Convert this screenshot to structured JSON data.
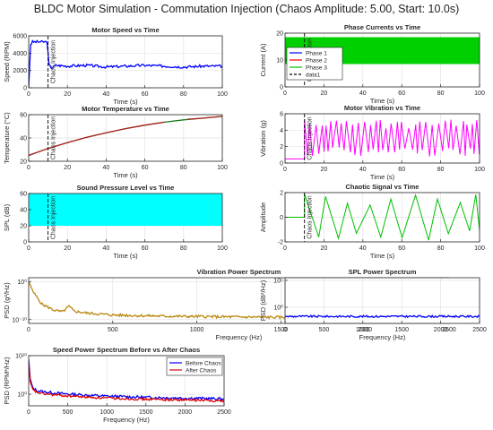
{
  "figure": {
    "suptitle": "BLDC Motor Simulation - Commutation Injection (Chaos Amplitude: 5.00, Start: 10.0s)"
  },
  "chart_data": [
    {
      "id": "speed",
      "type": "line",
      "title": "Motor Speed vs Time",
      "xlabel": "Time (s)",
      "ylabel": "Speed (RPM)",
      "xlim": [
        0,
        100
      ],
      "ylim": [
        0,
        6000
      ],
      "xticks": [
        0,
        20,
        40,
        60,
        80,
        100
      ],
      "yticks": [
        0,
        2000,
        4000,
        6000
      ],
      "grid": true,
      "series": [
        {
          "color": "#0000ff",
          "noise": 150,
          "seed": 3,
          "points": [
            [
              0,
              0
            ],
            [
              1,
              5000
            ],
            [
              2,
              5300
            ],
            [
              9.5,
              5300
            ],
            [
              10.5,
              2600
            ],
            [
              12,
              2300
            ],
            [
              14,
              2600
            ],
            [
              20,
              2500
            ],
            [
              30,
              2600
            ],
            [
              40,
              2400
            ],
            [
              50,
              2500
            ],
            [
              60,
              2600
            ],
            [
              70,
              2500
            ],
            [
              80,
              2400
            ],
            [
              90,
              2500
            ],
            [
              100,
              2500
            ]
          ]
        }
      ],
      "annotation": {
        "x": 10,
        "label": "Chaos Injection"
      }
    },
    {
      "id": "currents",
      "type": "line",
      "title": "Phase Currents vs Time",
      "xlabel": "Time (s)",
      "ylabel": "Current (A)",
      "xlim": [
        0,
        100
      ],
      "ylim": [
        0,
        20
      ],
      "xticks": [
        0,
        20,
        40,
        60,
        80,
        100
      ],
      "yticks": [
        0,
        10,
        20
      ],
      "grid": true,
      "fill_band": {
        "color": "#00d000",
        "from": 8.5,
        "to": 18.5
      },
      "series": [],
      "annotation": {
        "x": 10,
        "label": "Chaos Injection"
      },
      "legend": {
        "position": "center-left",
        "entries": [
          {
            "label": "Phase 1",
            "color": "#0000ff",
            "dash": false
          },
          {
            "label": "Phase 2",
            "color": "#ff0000",
            "dash": false
          },
          {
            "label": "Phase 3",
            "color": "#00c000",
            "dash": false
          },
          {
            "label": "data1",
            "color": "#000000",
            "dash": true
          }
        ]
      }
    },
    {
      "id": "temperature",
      "type": "line",
      "title": "Motor Temperature vs Time",
      "xlabel": "Time (s)",
      "ylabel": "Temperature (°C)",
      "xlim": [
        0,
        100
      ],
      "ylim": [
        20,
        60
      ],
      "xticks": [
        0,
        20,
        40,
        60,
        80,
        100
      ],
      "yticks": [
        20,
        40,
        60
      ],
      "grid": true,
      "series": [
        {
          "color": "#1a7a1a",
          "noise": 0,
          "seed": 1,
          "points": [
            [
              0,
              25
            ],
            [
              10,
              31
            ],
            [
              20,
              36
            ],
            [
              30,
              40.5
            ],
            [
              40,
              44.5
            ],
            [
              50,
              48
            ],
            [
              60,
              51
            ],
            [
              70,
              53.5
            ],
            [
              80,
              55.5
            ],
            [
              90,
              57
            ],
            [
              100,
              58.5
            ]
          ]
        },
        {
          "color": "#b22222",
          "noise": 0,
          "seed": 1,
          "points": [
            [
              0,
              25
            ],
            [
              10,
              31
            ],
            [
              20,
              36
            ],
            [
              30,
              40.5
            ],
            [
              40,
              44.5
            ],
            [
              50,
              48
            ],
            [
              60,
              51
            ],
            [
              70,
              53.5
            ]
          ]
        },
        {
          "color": "#b22222",
          "noise": 0,
          "seed": 1,
          "points": [
            [
              82,
              56
            ],
            [
              90,
              57
            ],
            [
              100,
              58.5
            ]
          ]
        }
      ],
      "annotation": {
        "x": 10,
        "label": "Chaos Injection"
      }
    },
    {
      "id": "vibration",
      "type": "line",
      "title": "Motor Vibration vs Time",
      "xlabel": "Time (s)",
      "ylabel": "Vibration (g)",
      "xlim": [
        0,
        100
      ],
      "ylim": [
        0,
        6
      ],
      "xticks": [
        0,
        20,
        40,
        60,
        80,
        100
      ],
      "yticks": [
        0,
        2,
        4,
        6
      ],
      "grid": true,
      "oscillation": {
        "color": "#ff00ff",
        "t0": 10,
        "low": 0.8,
        "high": 5.3,
        "period": 1.6,
        "seed": 7,
        "pre": [
          [
            0,
            0.5
          ],
          [
            10,
            0.5
          ]
        ]
      },
      "series": [],
      "annotation": {
        "x": 10,
        "label": "Chaos Injection"
      }
    },
    {
      "id": "spl",
      "type": "line",
      "title": "Sound Pressure Level vs Time",
      "xlabel": "Time (s)",
      "ylabel": "SPL (dB)",
      "xlim": [
        0,
        100
      ],
      "ylim": [
        0,
        60
      ],
      "xticks": [
        0,
        20,
        40,
        60,
        80,
        100
      ],
      "yticks": [
        0,
        20,
        40,
        60
      ],
      "grid": true,
      "fill_band": {
        "color": "#00ffff",
        "from": 20,
        "to": 60
      },
      "series": [],
      "annotation": {
        "x": 10,
        "label": "Chaos Injection"
      }
    },
    {
      "id": "chaotic",
      "type": "line",
      "title": "Chaotic Signal vs Time",
      "xlabel": "Time (s)",
      "ylabel": "Amplitude",
      "xlim": [
        0,
        100
      ],
      "ylim": [
        -2,
        2
      ],
      "xticks": [
        0,
        20,
        40,
        60,
        80,
        100
      ],
      "yticks": [
        -2,
        0,
        2
      ],
      "grid": true,
      "oscillation": {
        "color": "#00c000",
        "t0": 10,
        "low": -1.9,
        "high": 1.9,
        "period": 6,
        "seed": 11,
        "pre": [
          [
            0,
            0
          ],
          [
            10,
            0
          ]
        ]
      },
      "series": [],
      "annotation": {
        "x": 10,
        "label": "Chaos Injection"
      }
    },
    {
      "id": "vibpsd",
      "type": "line",
      "title": "Vibration Power Spectrum",
      "xlabel": "Frequency (Hz)",
      "ylabel": "PSD (g²/Hz)",
      "xlim": [
        0,
        2500
      ],
      "ylim": [
        -11,
        1
      ],
      "yscale": "log",
      "xticks": [
        0,
        500,
        1000,
        1500,
        2000,
        2500
      ],
      "yticks": [
        {
          "v": 0,
          "label": "10⁰"
        },
        {
          "v": -10,
          "label": "10⁻¹⁰"
        }
      ],
      "grid": true,
      "series": [
        {
          "color": "#b8860b",
          "noise": 0.35,
          "seed": 5,
          "points": [
            [
              0,
              0
            ],
            [
              30,
              -3
            ],
            [
              80,
              -6
            ],
            [
              150,
              -7.5
            ],
            [
              200,
              -8
            ],
            [
              240,
              -6.5
            ],
            [
              270,
              -7.8
            ],
            [
              350,
              -8.3
            ],
            [
              500,
              -8.8
            ],
            [
              800,
              -9.1
            ],
            [
              1200,
              -9.3
            ],
            [
              1800,
              -9.5
            ],
            [
              2500,
              -9.6
            ]
          ]
        }
      ]
    },
    {
      "id": "splpsd",
      "type": "line",
      "title": "SPL Power Spectrum",
      "xlabel": "Frequency (Hz)",
      "ylabel": "PSD (dB²/Hz)",
      "xlim": [
        0,
        2500
      ],
      "ylim": [
        -3,
        5.5
      ],
      "yscale": "log",
      "xticks": [
        0,
        500,
        1000,
        1500,
        2000,
        2500
      ],
      "yticks": [
        {
          "v": 0,
          "label": "10⁰"
        },
        {
          "v": 5,
          "label": "10⁵"
        }
      ],
      "grid": true,
      "series": [
        {
          "color": "#0000ff",
          "noise": 0.18,
          "seed": 9,
          "points": [
            [
              0,
              -1.7
            ],
            [
              2500,
              -1.7
            ]
          ]
        }
      ]
    },
    {
      "id": "speedpsd",
      "type": "line",
      "title": "Speed Power Spectrum Before vs After Chaos",
      "xlabel": "Frequency (Hz)",
      "ylabel": "PSD (RPM²/Hz)",
      "xlim": [
        0,
        2500
      ],
      "ylim": [
        -3,
        10
      ],
      "yscale": "log",
      "xticks": [
        0,
        500,
        1000,
        1500,
        2000,
        2500
      ],
      "yticks": [
        {
          "v": 0,
          "label": "10⁰"
        },
        {
          "v": 10,
          "label": "10¹⁰"
        }
      ],
      "grid": true,
      "series": [
        {
          "color": "#0000ff",
          "noise": 0.35,
          "seed": 13,
          "points": [
            [
              0,
              9
            ],
            [
              20,
              4
            ],
            [
              50,
              1.6
            ],
            [
              100,
              1.0
            ],
            [
              200,
              0.6
            ],
            [
              400,
              0.2
            ],
            [
              700,
              -0.2
            ],
            [
              1000,
              -0.5
            ],
            [
              1500,
              -0.8
            ],
            [
              2000,
              -1.0
            ],
            [
              2500,
              -1.2
            ]
          ]
        },
        {
          "color": "#e00000",
          "noise": 0.3,
          "seed": 17,
          "points": [
            [
              0,
              8
            ],
            [
              20,
              3.2
            ],
            [
              50,
              1.2
            ],
            [
              100,
              0.5
            ],
            [
              200,
              0.1
            ],
            [
              400,
              -0.3
            ],
            [
              700,
              -0.7
            ],
            [
              1000,
              -1.0
            ],
            [
              1500,
              -1.3
            ],
            [
              2000,
              -1.5
            ],
            [
              2500,
              -1.7
            ]
          ]
        }
      ],
      "legend": {
        "position": "top-right",
        "entries": [
          {
            "label": "Before Chaos",
            "color": "#0000ff",
            "dash": false
          },
          {
            "label": "After Chaos",
            "color": "#e00000",
            "dash": false
          }
        ]
      }
    }
  ]
}
